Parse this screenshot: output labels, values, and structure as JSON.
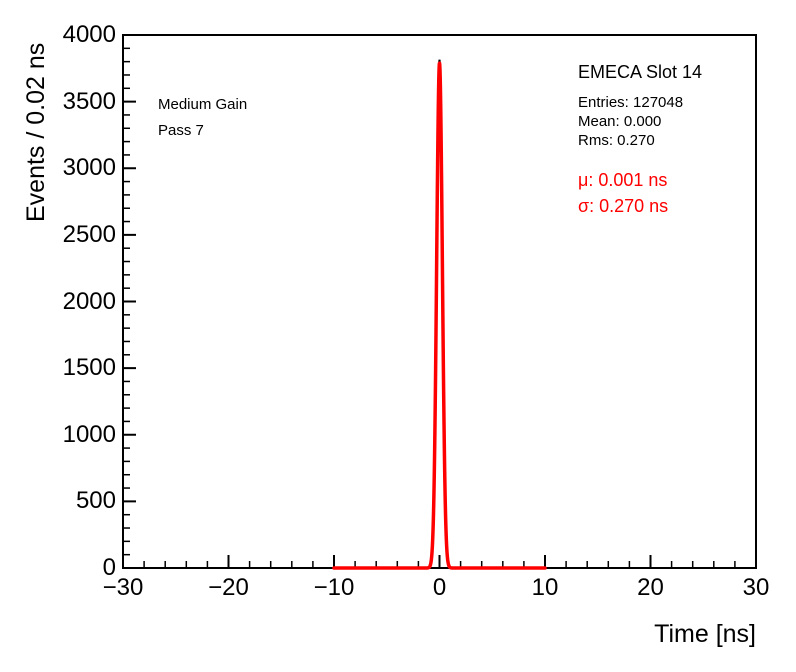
{
  "chart_data": {
    "type": "bar",
    "subtype": "histogram-with-gaussian-fit",
    "title": "",
    "xlabel": "Time [ns]",
    "ylabel": "Events / 0.02 ns",
    "xlim": [
      -30,
      30
    ],
    "ylim": [
      0,
      4000
    ],
    "grid": false,
    "x_major_ticks": [
      -30,
      -20,
      -10,
      0,
      10,
      20,
      30
    ],
    "x_tick_labels": [
      "−30",
      "−20",
      "−10",
      "0",
      "10",
      "20",
      "30"
    ],
    "x_minor_step": 2,
    "y_major_ticks": [
      0,
      500,
      1000,
      1500,
      2000,
      2500,
      3000,
      3500,
      4000
    ],
    "y_tick_labels": [
      "0",
      "500",
      "1000",
      "1500",
      "2000",
      "2500",
      "3000",
      "3500",
      "4000"
    ],
    "y_minor_step": 100,
    "histogram": {
      "amplitude": 3810,
      "mean": 0.0,
      "sigma": 0.27,
      "bin_width": 0.02,
      "color": "#000000",
      "line_width": 2
    },
    "fit": {
      "type": "gaussian",
      "amplitude": 3790,
      "mean": 0.001,
      "sigma": 0.27,
      "range": [
        -10,
        10
      ],
      "color": "#ff0000",
      "line_width": 3.5
    },
    "stats": {
      "entries": 127048,
      "mean": 0.0,
      "rms": 0.27
    },
    "fit_params": {
      "mu_ns": 0.001,
      "sigma_ns": 0.27
    }
  },
  "annotations": {
    "gain_label": "Medium Gain",
    "pass_label": "Pass 7",
    "slot_label": "EMECA Slot 14",
    "entries": "Entries: 127048",
    "mean": "Mean: 0.000",
    "rms": "Rms: 0.270",
    "fit_mu": "μ: 0.001 ns",
    "fit_sigma": "σ: 0.270 ns",
    "fit_color": "#ff0000"
  }
}
